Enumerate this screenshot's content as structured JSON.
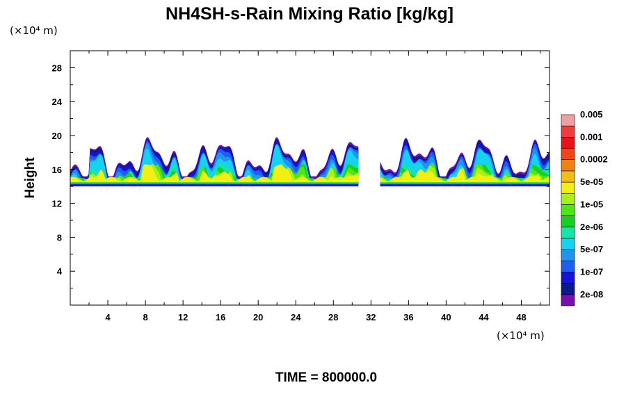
{
  "chart_data": {
    "type": "heatmap",
    "title": "NH4SH-s-Rain Mixing Ratio [kg/kg]",
    "ylabel": "Height",
    "x_unit": "(×10⁴ m)",
    "y_unit": "(×10⁴ m)",
    "footer": "TIME = 800000.0",
    "xlim": [
      0,
      51
    ],
    "ylim": [
      0,
      30
    ],
    "x_ticks": [
      4,
      8,
      12,
      16,
      20,
      24,
      28,
      32,
      36,
      40,
      44,
      48
    ],
    "y_ticks": [
      4,
      8,
      12,
      16,
      20,
      24,
      28
    ],
    "x_tick_labels": [
      "4",
      "8",
      "12",
      "16",
      "20",
      "24",
      "28",
      "32",
      "36",
      "40",
      "44",
      "48"
    ],
    "y_tick_labels": [
      "4",
      "8",
      "12",
      "16",
      "20",
      "24",
      "28"
    ],
    "colorbar": {
      "colors": [
        "#7a0fb0",
        "#0a1a8c",
        "#1414d6",
        "#1e5ef0",
        "#1e96f0",
        "#14d2f0",
        "#14e6a8",
        "#14d21e",
        "#50e614",
        "#aaf014",
        "#f0f014",
        "#f0be14",
        "#f08214",
        "#f04614",
        "#e61414",
        "#f03c3c",
        "#f0a0a0"
      ],
      "labels": [
        "2e-08",
        "1e-07",
        "5e-07",
        "2e-06",
        "1e-05",
        "5e-05",
        "0.0002",
        "0.001",
        "0.005"
      ]
    },
    "field_summary": {
      "layer_bottom_km": 140,
      "layer_top_km": 200,
      "gap_x_range": [
        30,
        32
      ],
      "core_peak_height": 150
    }
  }
}
